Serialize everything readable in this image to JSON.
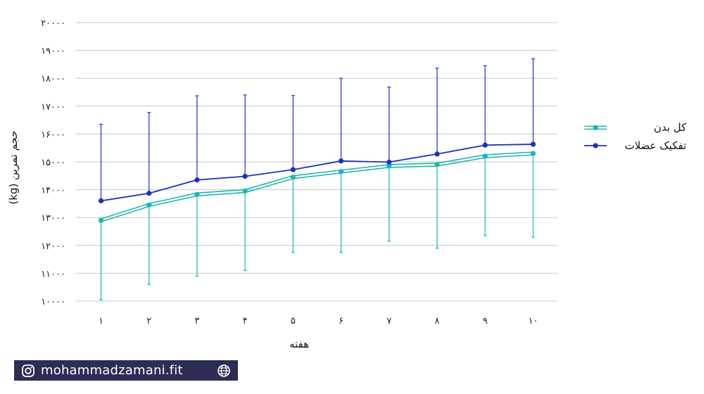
{
  "chart_data": {
    "type": "line",
    "xlabel": "هفته",
    "ylabel": "حجم تمرین (kg)",
    "categories": [
      "۱",
      "۲",
      "۳",
      "۴",
      "۵",
      "۶",
      "۷",
      "۸",
      "۹",
      "۱۰"
    ],
    "y_ticks": [
      "۱۰۰۰۰",
      "۱۱۰۰۰",
      "۱۲۰۰۰",
      "۱۳۰۰۰",
      "۱۴۰۰۰",
      "۱۵۰۰۰",
      "۱۶۰۰۰",
      "۱۷۰۰۰",
      "۱۸۰۰۰",
      "۱۹۰۰۰",
      "۲۰۰۰۰"
    ],
    "ylim": [
      10000,
      20000
    ],
    "grid": true,
    "legend_position": "right",
    "series": [
      {
        "name": "کل بدن",
        "color": "#1fb5b0",
        "line_style": "double",
        "values": [
          12900,
          13450,
          13830,
          13950,
          14450,
          14650,
          14850,
          14900,
          15200,
          15300
        ],
        "error_lower": [
          10050,
          10600,
          10900,
          11100,
          11750,
          11750,
          12150,
          11900,
          12350,
          12300
        ]
      },
      {
        "name": "تفکیک عضلات",
        "color": "#1b2fc4",
        "line_style": "solid",
        "values": [
          13600,
          13870,
          14350,
          14480,
          14720,
          15030,
          14990,
          15280,
          15600,
          15630
        ],
        "error_upper": [
          16350,
          16770,
          17370,
          17400,
          17380,
          18000,
          17680,
          18360,
          18450,
          18700
        ]
      }
    ]
  },
  "footer": {
    "handle": "mohammadzamani.fit",
    "left_icon": "instagram-icon",
    "right_icon": "globe-icon",
    "background": "#2b2d55"
  }
}
